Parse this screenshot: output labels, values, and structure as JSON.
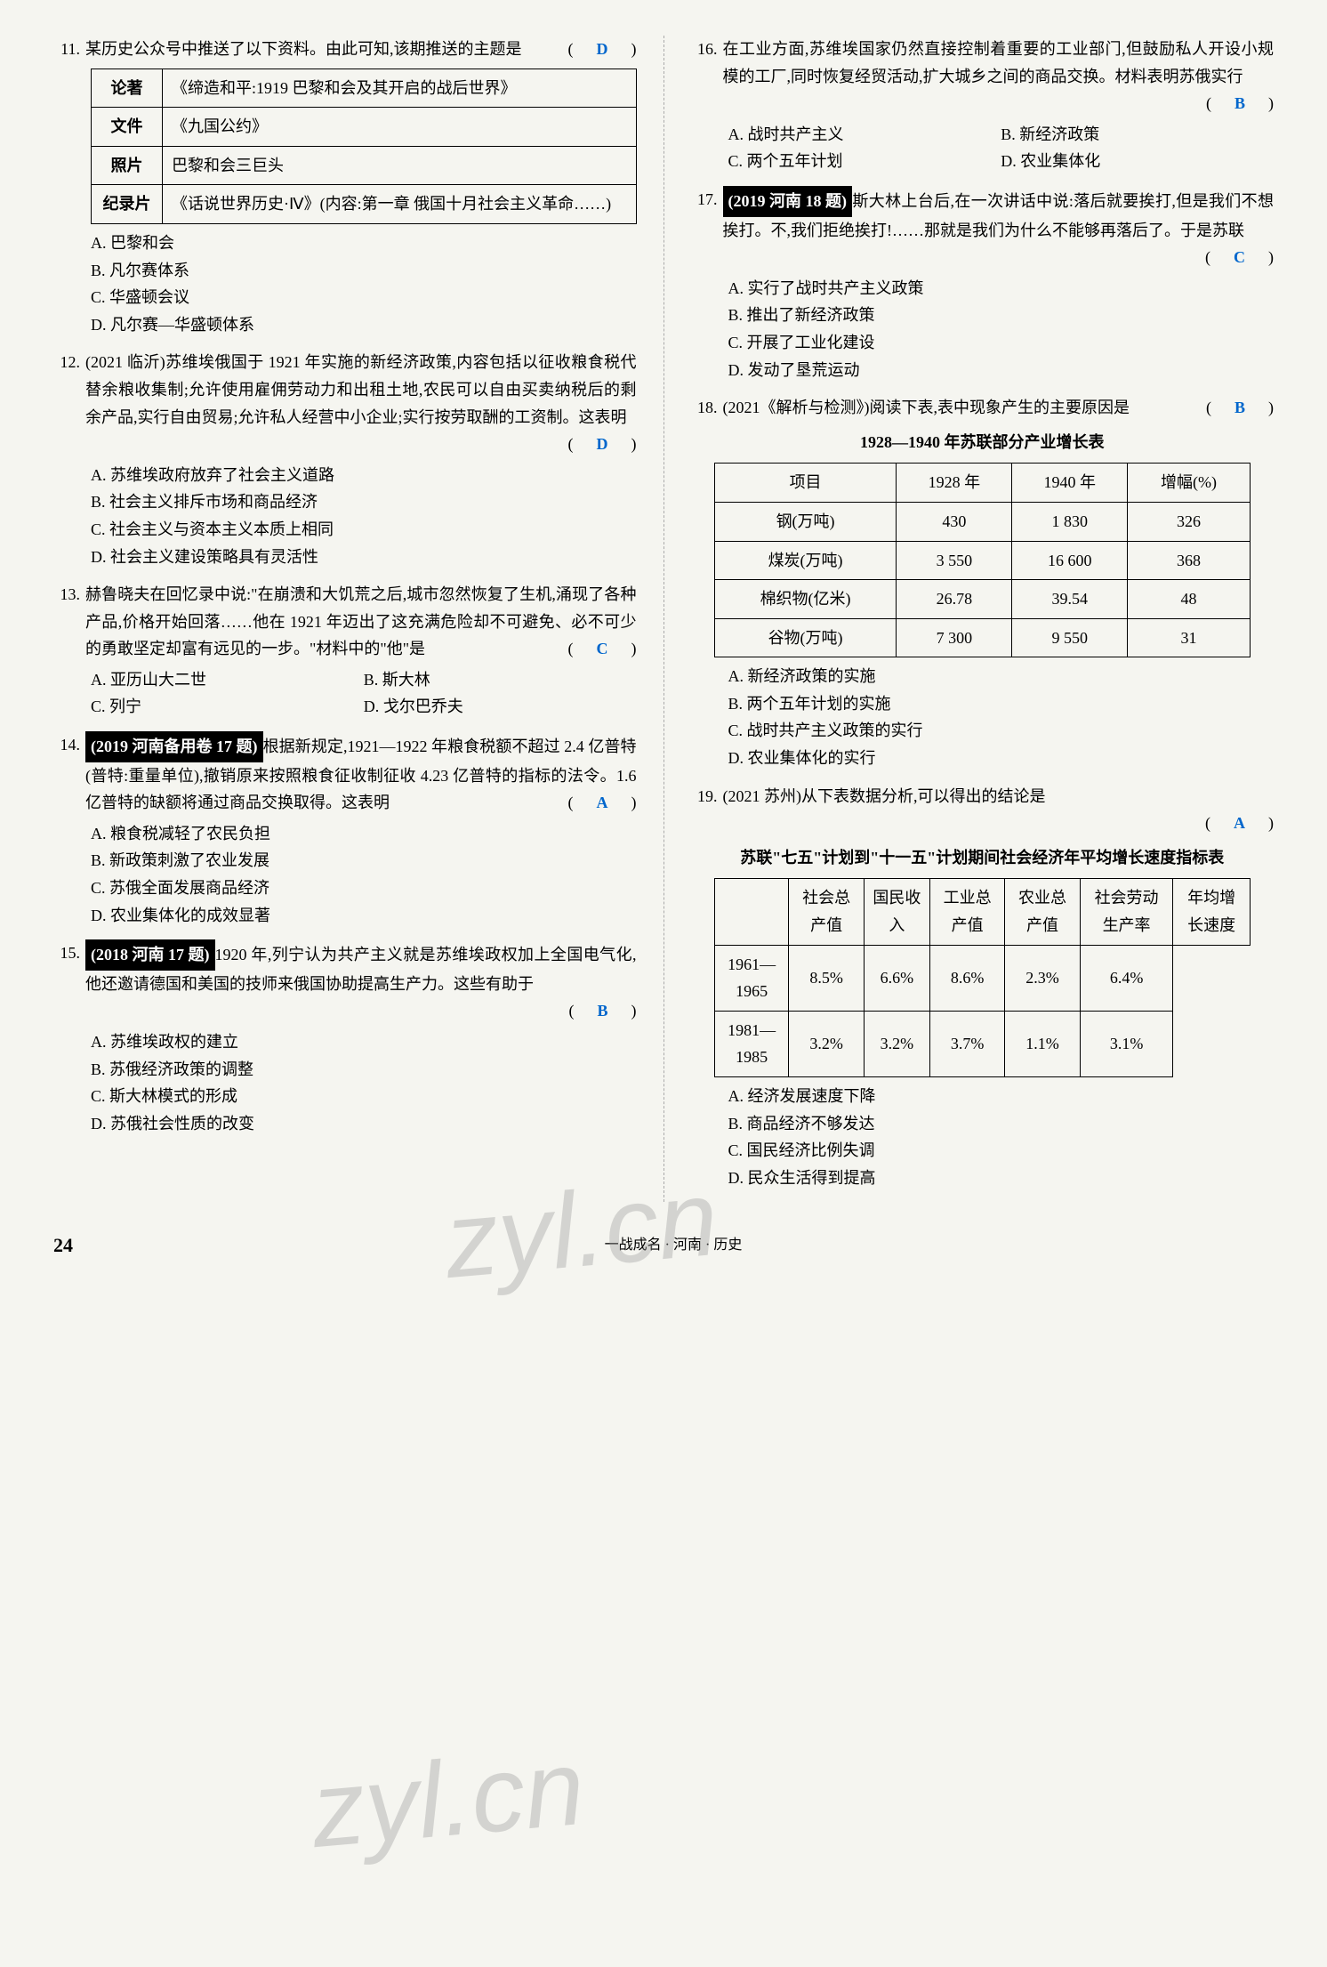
{
  "left": {
    "q11": {
      "num": "11.",
      "text": "某历史公众号中推送了以下资料。由此可知,该期推送的主题是",
      "answer": "D",
      "table": [
        {
          "label": "论著",
          "content": "《缔造和平:1919 巴黎和会及其开启的战后世界》"
        },
        {
          "label": "文件",
          "content": "《九国公约》"
        },
        {
          "label": "照片",
          "content": "巴黎和会三巨头"
        },
        {
          "label": "纪录片",
          "content": "《话说世界历史·Ⅳ》(内容:第一章 俄国十月社会主义革命……)"
        }
      ],
      "options": [
        "A. 巴黎和会",
        "B. 凡尔赛体系",
        "C. 华盛顿会议",
        "D. 凡尔赛—华盛顿体系"
      ]
    },
    "q12": {
      "num": "12.",
      "text": "(2021 临沂)苏维埃俄国于 1921 年实施的新经济政策,内容包括以征收粮食税代替余粮收集制;允许使用雇佣劳动力和出租土地,农民可以自由买卖纳税后的剩余产品,实行自由贸易;允许私人经营中小企业;实行按劳取酬的工资制。这表明",
      "answer": "D",
      "options": [
        "A. 苏维埃政府放弃了社会主义道路",
        "B. 社会主义排斥市场和商品经济",
        "C. 社会主义与资本主义本质上相同",
        "D. 社会主义建设策略具有灵活性"
      ]
    },
    "q13": {
      "num": "13.",
      "text": "赫鲁晓夫在回忆录中说:\"在崩溃和大饥荒之后,城市忽然恢复了生机,涌现了各种产品,价格开始回落……他在 1921 年迈出了这充满危险却不可避免、必不可少的勇敢坚定却富有远见的一步。\"材料中的\"他\"是",
      "answer": "C",
      "options": [
        [
          "A. 亚历山大二世",
          "B. 斯大林"
        ],
        [
          "C. 列宁",
          "D. 戈尔巴乔夫"
        ]
      ]
    },
    "q14": {
      "num": "14.",
      "tag": "(2019 河南备用卷 17 题)",
      "text": "根据新规定,1921—1922 年粮食税额不超过 2.4 亿普特(普特:重量单位),撤销原来按照粮食征收制征收 4.23 亿普特的指标的法令。1.6 亿普特的缺额将通过商品交换取得。这表明",
      "answer": "A",
      "options": [
        "A. 粮食税减轻了农民负担",
        "B. 新政策刺激了农业发展",
        "C. 苏俄全面发展商品经济",
        "D. 农业集体化的成效显著"
      ]
    },
    "q15": {
      "num": "15.",
      "tag": "(2018 河南 17 题)",
      "text": "1920 年,列宁认为共产主义就是苏维埃政权加上全国电气化,他还邀请德国和美国的技师来俄国协助提高生产力。这些有助于",
      "answer": "B",
      "options": [
        "A. 苏维埃政权的建立",
        "B. 苏俄经济政策的调整",
        "C. 斯大林模式的形成",
        "D. 苏俄社会性质的改变"
      ]
    }
  },
  "right": {
    "q16": {
      "num": "16.",
      "text": "在工业方面,苏维埃国家仍然直接控制着重要的工业部门,但鼓励私人开设小规模的工厂,同时恢复经贸活动,扩大城乡之间的商品交换。材料表明苏俄实行",
      "answer": "B",
      "options": [
        [
          "A. 战时共产主义",
          "B. 新经济政策"
        ],
        [
          "C. 两个五年计划",
          "D. 农业集体化"
        ]
      ]
    },
    "q17": {
      "num": "17.",
      "tag": "(2019 河南 18 题)",
      "text": "斯大林上台后,在一次讲话中说:落后就要挨打,但是我们不想挨打。不,我们拒绝挨打!……那就是我们为什么不能够再落后了。于是苏联",
      "answer": "C",
      "options": [
        "A. 实行了战时共产主义政策",
        "B. 推出了新经济政策",
        "C. 开展了工业化建设",
        "D. 发动了垦荒运动"
      ]
    },
    "q18": {
      "num": "18.",
      "text": "(2021《解析与检测》)阅读下表,表中现象产生的主要原因是",
      "answer": "B",
      "table_title": "1928—1940 年苏联部分产业增长表",
      "table_headers": [
        "项目",
        "1928 年",
        "1940 年",
        "增幅(%)"
      ],
      "table_rows": [
        [
          "钢(万吨)",
          "430",
          "1 830",
          "326"
        ],
        [
          "煤炭(万吨)",
          "3 550",
          "16 600",
          "368"
        ],
        [
          "棉织物(亿米)",
          "26.78",
          "39.54",
          "48"
        ],
        [
          "谷物(万吨)",
          "7 300",
          "9 550",
          "31"
        ]
      ],
      "options": [
        "A. 新经济政策的实施",
        "B. 两个五年计划的实施",
        "C. 战时共产主义政策的实行",
        "D. 农业集体化的实行"
      ]
    },
    "q19": {
      "num": "19.",
      "text": "(2021 苏州)从下表数据分析,可以得出的结论是",
      "answer": "A",
      "table_title": "苏联\"七五\"计划到\"十一五\"计划期间社会经济年平均增长速度指标表",
      "table_headers": [
        "",
        "社会总产值",
        "国民收入",
        "工业总产值",
        "农业总产值",
        "社会劳动生产率",
        "年均增长速度"
      ],
      "table_rows": [
        [
          "1961—1965",
          "8.5%",
          "6.6%",
          "8.6%",
          "2.3%",
          "6.4%"
        ],
        [
          "1981—1985",
          "3.2%",
          "3.2%",
          "3.7%",
          "1.1%",
          "3.1%"
        ]
      ],
      "options": [
        "A. 经济发展速度下降",
        "B. 商品经济不够发达",
        "C. 国民经济比例失调",
        "D. 民众生活得到提高"
      ]
    }
  },
  "footer": {
    "page": "24",
    "book": "一战成名 · 河南 · 历史"
  },
  "watermark": "zyl.cn"
}
